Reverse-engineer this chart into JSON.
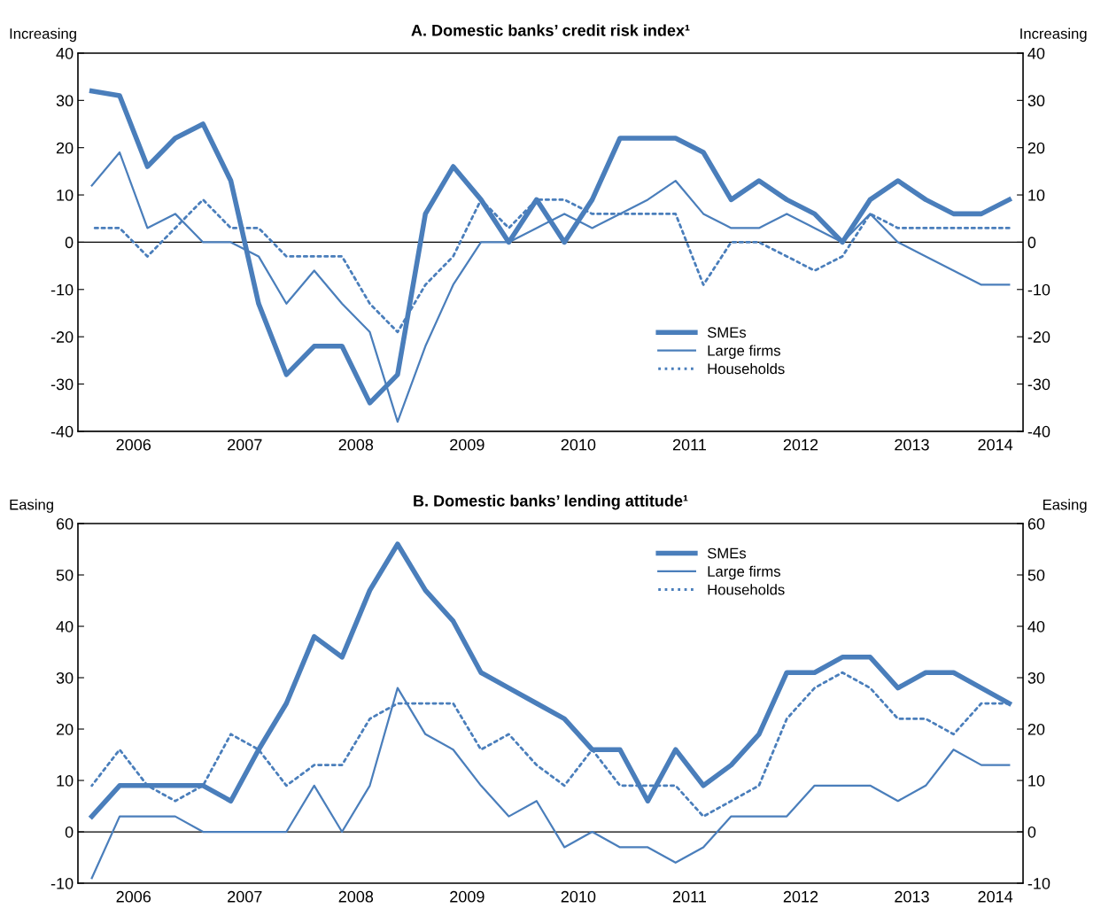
{
  "chart_data": [
    {
      "type": "line",
      "title": "A. Domestic banks’ credit risk index¹",
      "ylabel": "Increasing",
      "y2label": "Increasing",
      "x": [
        2006.125,
        2006.375,
        2006.625,
        2006.875,
        2007.125,
        2007.375,
        2007.625,
        2007.875,
        2008.125,
        2008.375,
        2008.625,
        2008.875,
        2009.125,
        2009.375,
        2009.625,
        2009.875,
        2010.125,
        2010.375,
        2010.625,
        2010.875,
        2011.125,
        2011.375,
        2011.625,
        2011.875,
        2012.125,
        2012.375,
        2012.625,
        2012.875,
        2013.125,
        2013.375,
        2013.625,
        2013.875,
        2014.125,
        2014.375
      ],
      "xlim": [
        2006.0,
        2014.5
      ],
      "xticks": [
        {
          "value": 2006.5,
          "label": "2006"
        },
        {
          "value": 2007.5,
          "label": "2007"
        },
        {
          "value": 2008.5,
          "label": "2008"
        },
        {
          "value": 2009.5,
          "label": "2009"
        },
        {
          "value": 2010.5,
          "label": "2010"
        },
        {
          "value": 2011.5,
          "label": "2011"
        },
        {
          "value": 2012.5,
          "label": "2012"
        },
        {
          "value": 2013.5,
          "label": "2013"
        },
        {
          "value": 2014.25,
          "label": "2014"
        }
      ],
      "ylim": [
        -40,
        40
      ],
      "yticks": [
        -40,
        -30,
        -20,
        -10,
        0,
        10,
        20,
        30,
        40
      ],
      "y2lim": [
        -40,
        40
      ],
      "y2ticks": [
        -40,
        -30,
        -20,
        -10,
        0,
        10,
        20,
        30,
        40
      ],
      "grid": false,
      "legend": "center right",
      "marker": "none",
      "ref_lines": [
        {
          "axis": "y",
          "value": 0,
          "color": "#000000"
        }
      ],
      "series": [
        {
          "name": "SMEs",
          "color": "#4a7ebb",
          "line_style": "solid",
          "values": [
            32,
            31,
            16,
            22,
            25,
            13,
            -13,
            -28,
            -22,
            -22,
            -34,
            -28,
            6,
            16,
            9,
            0,
            9,
            0,
            9,
            22,
            22,
            22,
            19,
            9,
            13,
            9,
            6,
            0,
            9,
            13,
            9,
            6,
            6,
            9
          ]
        },
        {
          "name": "Large firms",
          "color": "#4a7ebb",
          "line_style": "solid",
          "values": [
            12,
            19,
            3,
            6,
            0,
            0,
            -3,
            -13,
            -6,
            -13,
            -19,
            -38,
            -22,
            -9,
            0,
            0,
            3,
            6,
            3,
            6,
            9,
            13,
            6,
            3,
            3,
            6,
            3,
            0,
            6,
            0,
            -3,
            -6,
            -9,
            -9
          ]
        },
        {
          "name": "Households",
          "color": "#4a7ebb",
          "line_style": "dotted",
          "values": [
            3,
            3,
            -3,
            3,
            9,
            3,
            3,
            -3,
            -3,
            -3,
            -13,
            -19,
            -9,
            -3,
            9,
            3,
            9,
            9,
            6,
            6,
            6,
            6,
            -9,
            0,
            0,
            -3,
            -6,
            -3,
            6,
            3,
            3,
            3,
            3,
            3
          ]
        }
      ]
    },
    {
      "type": "line",
      "title": "B. Domestic banks’ lending attitude¹",
      "ylabel": "Easing",
      "y2label": "Easing",
      "x": [
        2006.125,
        2006.375,
        2006.625,
        2006.875,
        2007.125,
        2007.375,
        2007.625,
        2007.875,
        2008.125,
        2008.375,
        2008.625,
        2008.875,
        2009.125,
        2009.375,
        2009.625,
        2009.875,
        2010.125,
        2010.375,
        2010.625,
        2010.875,
        2011.125,
        2011.375,
        2011.625,
        2011.875,
        2012.125,
        2012.375,
        2012.625,
        2012.875,
        2013.125,
        2013.375,
        2013.625,
        2013.875,
        2014.125,
        2014.375
      ],
      "xlim": [
        2006.0,
        2014.5
      ],
      "xticks": [
        {
          "value": 2006.5,
          "label": "2006"
        },
        {
          "value": 2007.5,
          "label": "2007"
        },
        {
          "value": 2008.5,
          "label": "2008"
        },
        {
          "value": 2009.5,
          "label": "2009"
        },
        {
          "value": 2010.5,
          "label": "2010"
        },
        {
          "value": 2011.5,
          "label": "2011"
        },
        {
          "value": 2012.5,
          "label": "2012"
        },
        {
          "value": 2013.5,
          "label": "2013"
        },
        {
          "value": 2014.25,
          "label": "2014"
        }
      ],
      "ylim": [
        -10,
        60
      ],
      "yticks": [
        -10,
        0,
        10,
        20,
        30,
        40,
        50,
        60
      ],
      "y2lim": [
        -10,
        60
      ],
      "y2ticks": [
        -10,
        0,
        10,
        20,
        30,
        40,
        50,
        60
      ],
      "grid": false,
      "legend": "top right",
      "marker": "none",
      "ref_lines": [
        {
          "axis": "y",
          "value": 0,
          "color": "#000000"
        }
      ],
      "series": [
        {
          "name": "SMEs",
          "color": "#4a7ebb",
          "line_style": "solid",
          "values": [
            3,
            9,
            9,
            9,
            9,
            6,
            16,
            25,
            38,
            34,
            47,
            56,
            47,
            41,
            31,
            28,
            25,
            22,
            16,
            16,
            6,
            16,
            9,
            13,
            19,
            31,
            31,
            34,
            34,
            28,
            31,
            31,
            28,
            25
          ]
        },
        {
          "name": "Large firms",
          "color": "#4a7ebb",
          "line_style": "solid",
          "values": [
            -9,
            3,
            3,
            3,
            0,
            0,
            0,
            0,
            9,
            0,
            9,
            28,
            19,
            16,
            9,
            3,
            6,
            -3,
            0,
            -3,
            -3,
            -6,
            -3,
            3,
            3,
            3,
            9,
            9,
            9,
            6,
            9,
            16,
            13,
            13
          ]
        },
        {
          "name": "Households",
          "color": "#4a7ebb",
          "line_style": "dotted",
          "values": [
            9,
            16,
            9,
            6,
            9,
            19,
            16,
            9,
            13,
            13,
            22,
            25,
            25,
            25,
            16,
            19,
            13,
            9,
            16,
            9,
            9,
            9,
            3,
            6,
            9,
            22,
            28,
            31,
            28,
            22,
            22,
            19,
            25,
            25
          ]
        }
      ]
    }
  ]
}
